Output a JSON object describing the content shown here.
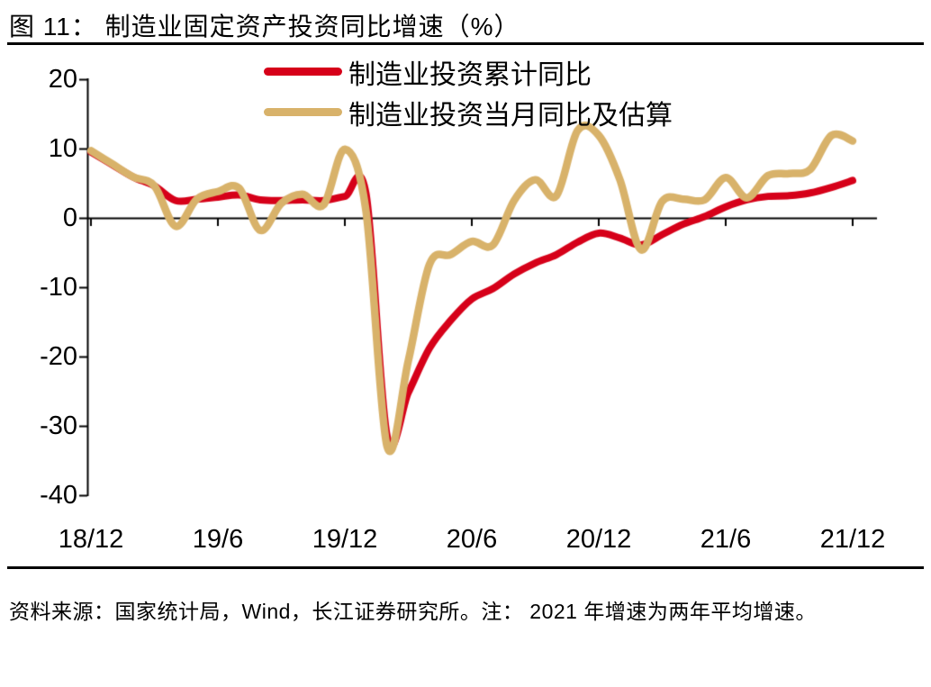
{
  "title": "图 11： 制造业固定资产投资同比增速（%）",
  "footer": {
    "source_note": "资料来源：国家统计局，Wind，长江证券研究所。注： 2021 年增速为两年平均增速。"
  },
  "colors": {
    "red": "#d60019",
    "gold": "#d8b26a",
    "axis": "#000000",
    "background": "#ffffff"
  },
  "chart_data": {
    "type": "line",
    "title": "制造业固定资产投资同比增速（%）",
    "x": [
      "18/12",
      "19/1",
      "19/2",
      "19/3",
      "19/4",
      "19/5",
      "19/6",
      "19/7",
      "19/8",
      "19/9",
      "19/10",
      "19/11",
      "19/12",
      "20/1",
      "20/2",
      "20/3",
      "20/4",
      "20/5",
      "20/6",
      "20/7",
      "20/8",
      "20/9",
      "20/10",
      "20/11",
      "20/12",
      "21/1",
      "21/2",
      "21/3",
      "21/4",
      "21/5",
      "21/6",
      "21/7",
      "21/8",
      "21/9",
      "21/10",
      "21/11",
      "21/12"
    ],
    "series": [
      {
        "name": "制造业投资累计同比",
        "color": "#d60019",
        "values": [
          9.5,
          7.7,
          5.9,
          4.6,
          2.5,
          2.7,
          3.0,
          3.3,
          2.6,
          2.5,
          2.6,
          2.5,
          3.1,
          3.5,
          -31.5,
          -25.2,
          -18.8,
          -14.8,
          -11.7,
          -10.2,
          -8.1,
          -6.5,
          -5.3,
          -3.5,
          -2.2,
          -2.9,
          -3.9,
          -2.4,
          -0.9,
          0.2,
          1.6,
          2.6,
          3.1,
          3.2,
          3.6,
          4.4,
          5.4
        ]
      },
      {
        "name": "制造业投资当月同比及估算",
        "color": "#d8b26a",
        "values": [
          9.7,
          7.8,
          5.9,
          4.6,
          -1.2,
          2.7,
          3.8,
          4.3,
          -1.8,
          2.1,
          3.4,
          1.9,
          9.9,
          1.0,
          -33.0,
          -20.6,
          -6.7,
          -5.3,
          -3.4,
          -3.9,
          2.5,
          5.5,
          3.2,
          12.6,
          11.9,
          5.5,
          -4.6,
          2.4,
          2.7,
          2.6,
          5.8,
          2.9,
          6.1,
          6.4,
          7.0,
          11.9,
          11.1
        ]
      }
    ],
    "ylim": [
      -40,
      20
    ],
    "yticks": [
      20,
      10,
      0,
      -10,
      -20,
      -30,
      -40
    ],
    "xtick_labels": [
      "18/12",
      "19/6",
      "19/12",
      "20/6",
      "20/12",
      "21/6",
      "21/12"
    ],
    "xtick_month_indices": [
      0,
      6,
      12,
      18,
      24,
      30,
      36
    ],
    "grid": false,
    "x_axis_at_zero": true,
    "legend_position": "top-center",
    "line_style": "smooth"
  }
}
